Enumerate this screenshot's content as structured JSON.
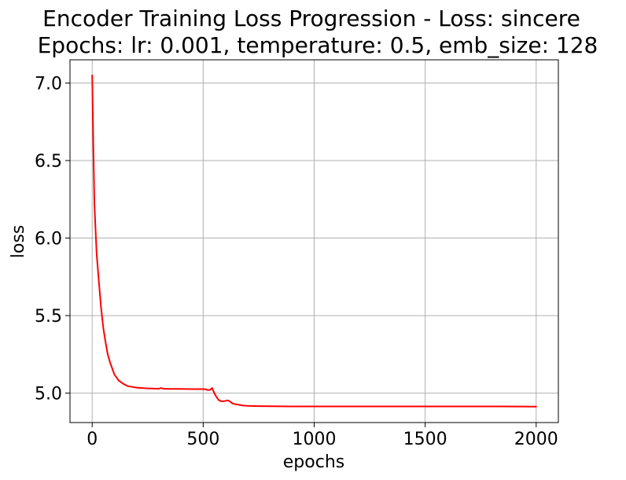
{
  "chart_data": {
    "type": "line",
    "title": "Encoder Training Loss Progression - Loss: sincere",
    "subtitle": "Epochs: lr: 0.001, temperature: 0.5, emb_size: 128",
    "xlabel": "epochs",
    "ylabel": "loss",
    "xlim": [
      -100,
      2100
    ],
    "ylim": [
      4.81,
      7.15
    ],
    "xticks": [
      0,
      500,
      1000,
      1500,
      2000
    ],
    "xtick_labels": [
      "0",
      "500",
      "1000",
      "1500",
      "2000"
    ],
    "yticks": [
      5.0,
      5.5,
      6.0,
      6.5,
      7.0
    ],
    "ytick_labels": [
      "5.0",
      "5.5",
      "6.0",
      "6.5",
      "7.0"
    ],
    "grid": true,
    "series": [
      {
        "color": "#ff0000",
        "x": [
          0,
          5,
          10,
          20,
          30,
          40,
          50,
          60,
          70,
          80,
          90,
          100,
          120,
          140,
          160,
          180,
          200,
          250,
          300,
          310,
          320,
          350,
          400,
          450,
          500,
          510,
          520,
          530,
          540,
          550,
          560,
          570,
          580,
          590,
          600,
          610,
          620,
          630,
          640,
          660,
          680,
          700,
          750,
          800,
          900,
          1000,
          1200,
          1400,
          1600,
          1800,
          2000
        ],
        "y": [
          7.05,
          6.6,
          6.22,
          5.9,
          5.72,
          5.55,
          5.42,
          5.33,
          5.25,
          5.2,
          5.16,
          5.12,
          5.08,
          5.06,
          5.045,
          5.04,
          5.035,
          5.03,
          5.028,
          5.033,
          5.028,
          5.027,
          5.027,
          5.026,
          5.026,
          5.025,
          5.02,
          5.02,
          5.033,
          5.0,
          4.975,
          4.955,
          4.948,
          4.947,
          4.95,
          4.953,
          4.947,
          4.935,
          4.93,
          4.925,
          4.92,
          4.918,
          4.916,
          4.915,
          4.914,
          4.914,
          4.914,
          4.914,
          4.914,
          4.914,
          4.913
        ]
      }
    ]
  }
}
